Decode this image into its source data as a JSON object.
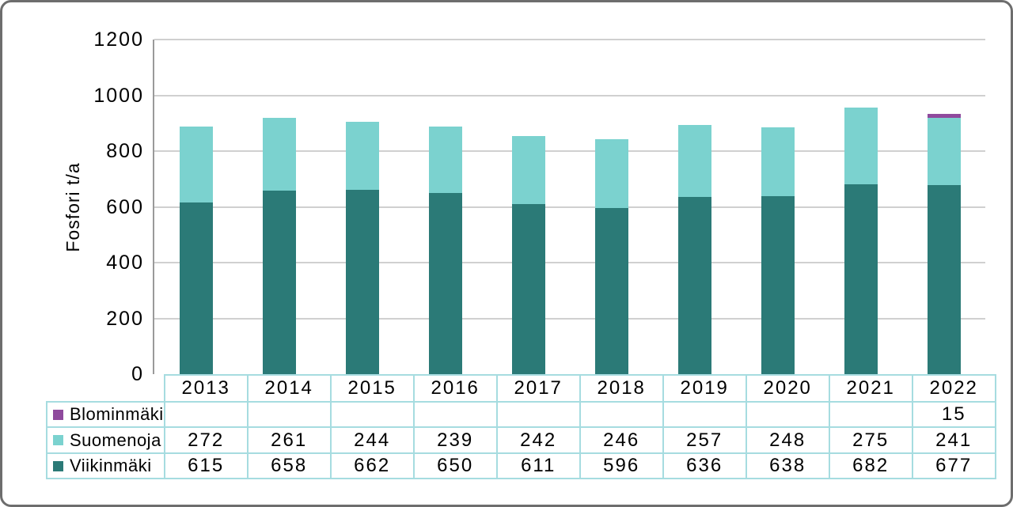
{
  "chart_data": {
    "type": "bar",
    "stacked": true,
    "title": "",
    "xlabel": "",
    "ylabel": "Fosfori t/a",
    "ylim": [
      0,
      1200
    ],
    "yticks": [
      0,
      200,
      400,
      600,
      800,
      1000,
      1200
    ],
    "grid": true,
    "legend_position": "table-left-below",
    "categories": [
      "2013",
      "2014",
      "2015",
      "2016",
      "2017",
      "2018",
      "2019",
      "2020",
      "2021",
      "2022"
    ],
    "series": [
      {
        "name": "Blominmäki",
        "color": "#8f4a9d",
        "values": [
          null,
          null,
          null,
          null,
          null,
          null,
          null,
          null,
          null,
          15
        ]
      },
      {
        "name": "Suomenoja",
        "color": "#7bd2cf",
        "values": [
          272,
          261,
          244,
          239,
          242,
          246,
          257,
          248,
          275,
          241
        ]
      },
      {
        "name": "Viikinmäki",
        "color": "#2b7a77",
        "values": [
          615,
          658,
          662,
          650,
          611,
          596,
          636,
          638,
          682,
          677
        ]
      }
    ],
    "stack_order_bottom_to_top": [
      "Viikinmäki",
      "Suomenoja",
      "Blominmäki"
    ]
  },
  "colors": {
    "gridline": "#d0d0d0",
    "axis": "#9a9a9a",
    "table_border": "#a6dce0",
    "frame_border": "#6d6d6d",
    "background": "#ffffff",
    "text": "#000000"
  }
}
